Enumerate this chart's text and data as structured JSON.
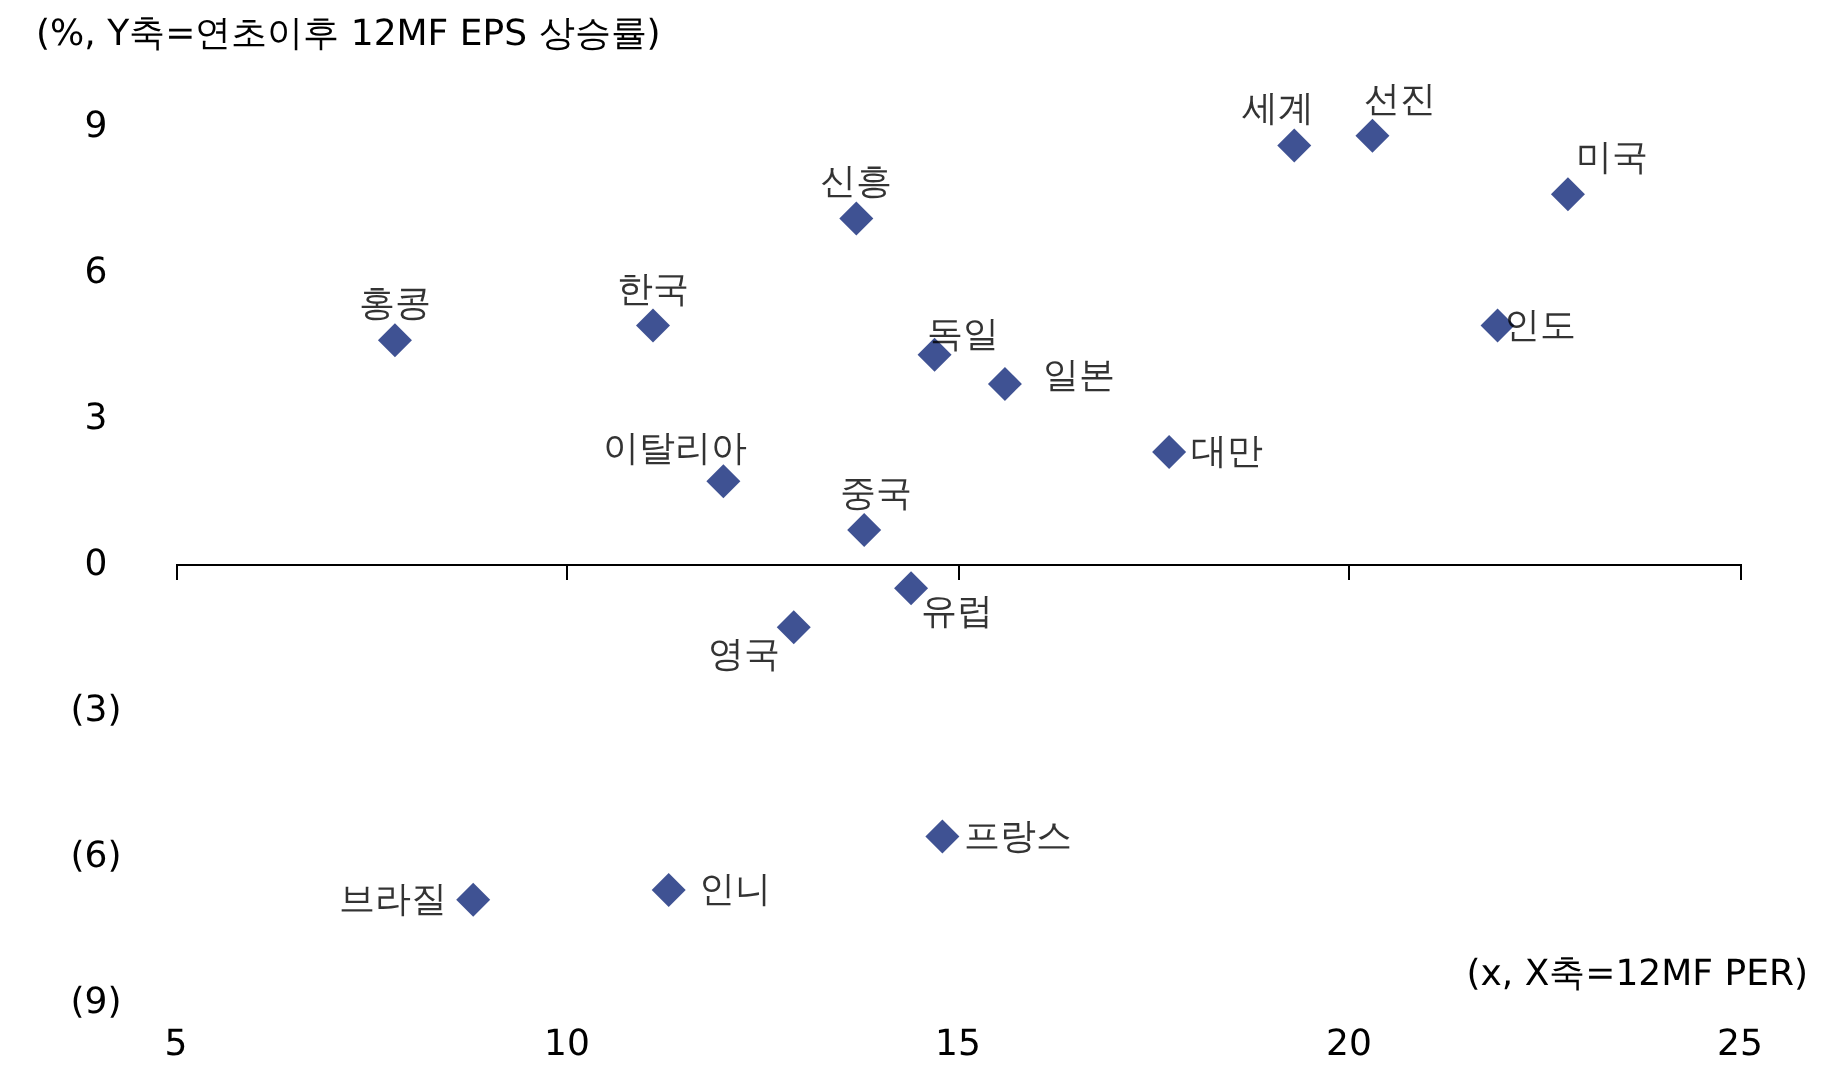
{
  "chart_data": {
    "type": "scatter",
    "ylabel": "(%, Y축=연초이후 12MF EPS 상승률)",
    "xlabel": "(x, X축=12MF PER)",
    "x": [
      7.8,
      11.1,
      13.7,
      19.3,
      20.3,
      22.8,
      21.9,
      14.7,
      15.6,
      17.7,
      12.0,
      13.8,
      14.4,
      12.9,
      14.8,
      11.3,
      8.8
    ],
    "values": [
      4.6,
      4.9,
      7.1,
      8.6,
      8.8,
      7.6,
      4.9,
      4.3,
      3.7,
      2.3,
      1.7,
      0.7,
      -0.5,
      -1.3,
      -5.6,
      -6.7,
      -6.9
    ],
    "color": "#3f5293",
    "marker": "diamond",
    "grid": false,
    "ref_lines": [
      {
        "axis": "y",
        "value": 0,
        "color": "#000000"
      }
    ],
    "xlim": [
      5,
      25
    ],
    "xticks": [
      5,
      10,
      15,
      20,
      25
    ],
    "ylim": [
      -9,
      9
    ],
    "yticks": [
      {
        "value": -9,
        "label": "(9)"
      },
      {
        "value": -6,
        "label": "(6)"
      },
      {
        "value": -3,
        "label": "(3)"
      },
      0,
      3,
      6,
      9
    ],
    "annotations": [
      {
        "text": "홍콩",
        "x": 7.8,
        "y": 4.6
      },
      {
        "text": "한국",
        "x": 11.1,
        "y": 4.9
      },
      {
        "text": "신흥",
        "x": 13.7,
        "y": 7.1
      },
      {
        "text": "세계",
        "x": 19.3,
        "y": 8.6
      },
      {
        "text": "선진",
        "x": 20.3,
        "y": 8.8
      },
      {
        "text": "미국",
        "x": 22.8,
        "y": 7.6
      },
      {
        "text": "인도",
        "x": 21.9,
        "y": 4.9
      },
      {
        "text": "독일",
        "x": 14.7,
        "y": 4.3
      },
      {
        "text": "일본",
        "x": 15.6,
        "y": 3.7
      },
      {
        "text": "대만",
        "x": 17.7,
        "y": 2.3
      },
      {
        "text": "이탈리아",
        "x": 12.0,
        "y": 1.7
      },
      {
        "text": "중국",
        "x": 13.8,
        "y": 0.7
      },
      {
        "text": "유럽",
        "x": 14.4,
        "y": -0.5
      },
      {
        "text": "영국",
        "x": 12.9,
        "y": -1.3
      },
      {
        "text": "프랑스",
        "x": 14.8,
        "y": -5.6
      },
      {
        "text": "인니",
        "x": 11.3,
        "y": -6.7
      },
      {
        "text": "브라질",
        "x": 8.8,
        "y": -6.9
      }
    ]
  }
}
